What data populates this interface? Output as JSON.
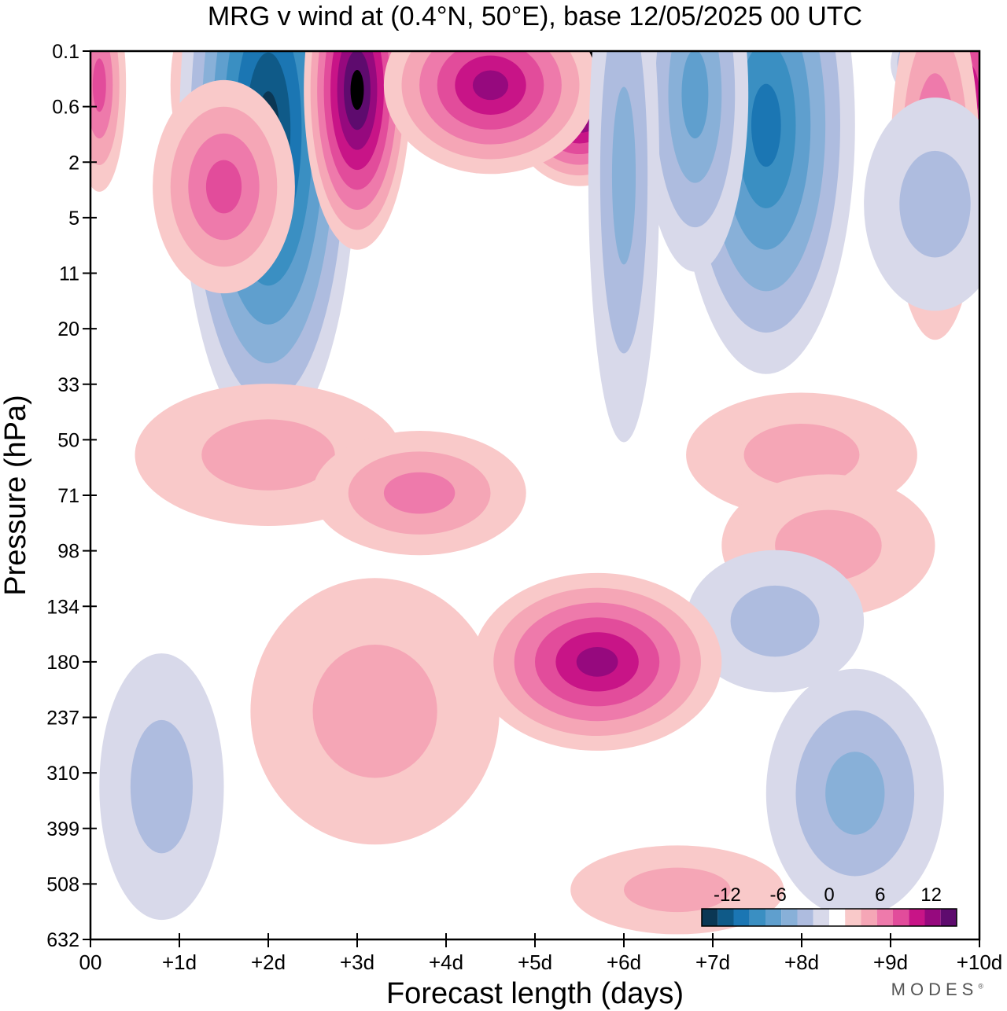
{
  "chart_data": {
    "type": "heatmap",
    "title": "MRG v wind at (0.4°N, 50°E),  base 12/05/2025  00 UTC",
    "xlabel": "Forecast length (days)",
    "ylabel": "Pressure (hPa)",
    "x_ticks": [
      "00",
      "+1d",
      "+2d",
      "+3d",
      "+4d",
      "+5d",
      "+6d",
      "+7d",
      "+8d",
      "+9d",
      "+10d"
    ],
    "y_ticks": [
      "0.1",
      "0.6",
      "2",
      "5",
      "11",
      "20",
      "33",
      "50",
      "71",
      "98",
      "134",
      "180",
      "237",
      "310",
      "399",
      "508",
      "632"
    ],
    "xlim": [
      0,
      10
    ],
    "colorbar": {
      "tick_labels": [
        "-12",
        "-6",
        "0",
        "6",
        "12"
      ],
      "tick_values": [
        -12,
        -6,
        0,
        6,
        12
      ],
      "levels": [
        -15,
        -13.5,
        -12,
        -10.5,
        -9,
        -7.5,
        -6,
        -4.5,
        -3,
        -1.5,
        1.5,
        3,
        4.5,
        6,
        7.5,
        9,
        10.5,
        12,
        13.5,
        15
      ],
      "colors": [
        "#0b3754",
        "#0f5a88",
        "#1b76b3",
        "#3a8fc2",
        "#5f9fce",
        "#88b0d8",
        "#aebcdf",
        "#d8d9ea",
        "#ffffff",
        "#f9c9c9",
        "#f5a6b6",
        "#ee7aab",
        "#e24c9b",
        "#c81487",
        "#96097e",
        "#5e0b6e"
      ]
    },
    "regions": [
      {
        "day": 1.5,
        "p": 0.3,
        "v": 7,
        "dx": 0.6,
        "dp": 0.12
      },
      {
        "day": 0.1,
        "p": 0.3,
        "v": 6,
        "dx": 0.3,
        "dp": 0.12
      },
      {
        "day": 2.0,
        "p": 1.0,
        "v": -12,
        "dx": 1.0,
        "dp": 0.35
      },
      {
        "day": 3.0,
        "p": 0.35,
        "v": 12,
        "dx": 0.6,
        "dp": 0.18
      },
      {
        "day": 5.5,
        "p": 0.25,
        "v": 15,
        "dx": 0.9,
        "dp": 0.12
      },
      {
        "day": 4.5,
        "p": 0.3,
        "v": 9,
        "dx": 1.2,
        "dp": 0.1
      },
      {
        "day": 7.6,
        "p": 0.9,
        "v": -9,
        "dx": 1.0,
        "dp": 0.28
      },
      {
        "day": 6.8,
        "p": 0.4,
        "v": -7,
        "dx": 0.6,
        "dp": 0.2
      },
      {
        "day": 9.6,
        "p": 0.15,
        "v": -13,
        "dx": 0.6,
        "dp": 0.05
      },
      {
        "day": 9.8,
        "p": 0.4,
        "v": 9,
        "dx": 0.6,
        "dp": 0.12
      },
      {
        "day": 9.5,
        "p": 2.0,
        "v": 7,
        "dx": 0.5,
        "dp": 0.2
      },
      {
        "day": 1.5,
        "p": 3.0,
        "v": 7,
        "dx": 0.8,
        "dp": 0.12
      },
      {
        "day": 6.0,
        "p": 2.5,
        "v": -5,
        "dx": 0.4,
        "dp": 0.3
      },
      {
        "day": 9.5,
        "p": 4.0,
        "v": -4,
        "dx": 0.8,
        "dp": 0.12
      },
      {
        "day": 2.0,
        "p": 55,
        "v": 4,
        "dx": 1.5,
        "dp": 0.08
      },
      {
        "day": 3.7,
        "p": 70,
        "v": 5,
        "dx": 1.2,
        "dp": 0.07
      },
      {
        "day": 8.0,
        "p": 55,
        "v": 4,
        "dx": 1.3,
        "dp": 0.07
      },
      {
        "day": 8.3,
        "p": 95,
        "v": 4,
        "dx": 1.2,
        "dp": 0.08
      },
      {
        "day": 7.7,
        "p": 145,
        "v": -4,
        "dx": 1.0,
        "dp": 0.08
      },
      {
        "day": 5.7,
        "p": 180,
        "v": 10,
        "dx": 1.4,
        "dp": 0.1
      },
      {
        "day": 3.2,
        "p": 230,
        "v": 3,
        "dx": 1.4,
        "dp": 0.15
      },
      {
        "day": 0.8,
        "p": 330,
        "v": -3,
        "dx": 0.7,
        "dp": 0.15
      },
      {
        "day": 8.6,
        "p": 340,
        "v": -5,
        "dx": 1.0,
        "dp": 0.14
      },
      {
        "day": 6.6,
        "p": 520,
        "v": 3,
        "dx": 1.2,
        "dp": 0.05
      }
    ]
  },
  "brand": {
    "name": "MODES",
    "mark": "®"
  }
}
